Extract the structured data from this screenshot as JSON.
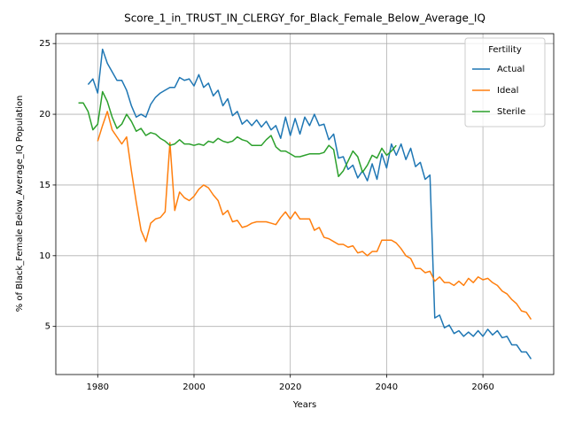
{
  "chart_data": {
    "type": "line",
    "title": "Score_1_in_TRUST_IN_CLERGY_for_Black_Female_Below_Average_IQ",
    "xlabel": "Years",
    "ylabel": "% of Black_Female Below_Average_IQ Population",
    "x": [
      1976,
      1977,
      1978,
      1979,
      1980,
      1981,
      1982,
      1983,
      1984,
      1985,
      1986,
      1987,
      1988,
      1989,
      1990,
      1991,
      1992,
      1993,
      1994,
      1995,
      1996,
      1997,
      1998,
      1999,
      2000,
      2001,
      2002,
      2003,
      2004,
      2005,
      2006,
      2007,
      2008,
      2009,
      2010,
      2011,
      2012,
      2013,
      2014,
      2015,
      2016,
      2017,
      2018,
      2019,
      2020,
      2021,
      2022,
      2023,
      2024,
      2025,
      2026,
      2027,
      2028,
      2029,
      2030,
      2031,
      2032,
      2033,
      2034,
      2035,
      2036,
      2037,
      2038,
      2039,
      2040,
      2041,
      2042,
      2043,
      2044,
      2045,
      2046,
      2047,
      2048,
      2049,
      2050,
      2051,
      2052,
      2053,
      2054,
      2055,
      2056,
      2057,
      2058,
      2059,
      2060,
      2061,
      2062,
      2063,
      2064,
      2065,
      2066,
      2067,
      2068,
      2069,
      2070
    ],
    "series": [
      {
        "name": "Actual",
        "color": "#1f77b4",
        "values": [
          null,
          null,
          22.1,
          22.5,
          21.5,
          24.6,
          23.6,
          23.0,
          22.4,
          22.4,
          21.7,
          20.6,
          19.8,
          20.0,
          19.8,
          20.7,
          21.2,
          21.5,
          21.7,
          21.9,
          21.9,
          22.6,
          22.4,
          22.5,
          22.0,
          22.8,
          21.9,
          22.2,
          21.3,
          21.7,
          20.6,
          21.1,
          19.9,
          20.2,
          19.3,
          19.6,
          19.2,
          19.6,
          19.1,
          19.5,
          18.9,
          19.2,
          18.3,
          19.8,
          18.5,
          19.7,
          18.6,
          19.8,
          19.2,
          20.0,
          19.2,
          19.3,
          18.2,
          18.6,
          16.9,
          17.0,
          16.1,
          16.4,
          15.5,
          16.0,
          15.3,
          16.5,
          15.4,
          17.2,
          16.2,
          17.9,
          17.1,
          17.9,
          16.8,
          17.6,
          16.3,
          16.6,
          15.4,
          15.7,
          5.6,
          5.8,
          4.9,
          5.1,
          4.5,
          4.7,
          4.3,
          4.6,
          4.3,
          4.7,
          4.3,
          4.8,
          4.4,
          4.7,
          4.2,
          4.3,
          3.7,
          3.7,
          3.2,
          3.2,
          2.7
        ]
      },
      {
        "name": "Ideal",
        "color": "#ff7f0e",
        "values": [
          null,
          null,
          null,
          null,
          18.1,
          19.2,
          20.2,
          18.9,
          18.4,
          17.9,
          18.4,
          16.0,
          13.8,
          11.8,
          11.0,
          12.3,
          12.6,
          12.7,
          13.1,
          18.0,
          13.2,
          14.5,
          14.1,
          13.9,
          14.2,
          14.7,
          15.0,
          14.8,
          14.3,
          13.9,
          12.9,
          13.2,
          12.4,
          12.5,
          12.0,
          12.1,
          12.3,
          12.4,
          12.4,
          12.4,
          12.3,
          12.2,
          12.7,
          13.1,
          12.6,
          13.1,
          12.6,
          12.6,
          12.6,
          11.8,
          12.0,
          11.3,
          11.2,
          11.0,
          10.8,
          10.8,
          10.6,
          10.7,
          10.2,
          10.3,
          10.0,
          10.3,
          10.3,
          11.1,
          11.1,
          11.1,
          10.9,
          10.5,
          10.0,
          9.8,
          9.1,
          9.1,
          8.8,
          8.9,
          8.2,
          8.5,
          8.1,
          8.1,
          7.9,
          8.2,
          7.9,
          8.4,
          8.1,
          8.5,
          8.3,
          8.4,
          8.1,
          7.9,
          7.5,
          7.3,
          6.9,
          6.6,
          6.1,
          6.0,
          5.5
        ]
      },
      {
        "name": "Sterile",
        "color": "#2ca02c",
        "values": [
          20.8,
          20.8,
          20.2,
          18.9,
          19.3,
          21.6,
          20.9,
          19.8,
          19.0,
          19.3,
          20.0,
          19.5,
          18.8,
          19.0,
          18.5,
          18.7,
          18.6,
          18.3,
          18.1,
          17.8,
          17.9,
          18.2,
          17.9,
          17.9,
          17.8,
          17.9,
          17.8,
          18.1,
          18.0,
          18.3,
          18.1,
          18.0,
          18.1,
          18.4,
          18.2,
          18.1,
          17.8,
          17.8,
          17.8,
          18.2,
          18.5,
          17.7,
          17.4,
          17.4,
          17.2,
          17.0,
          17.0,
          17.1,
          17.2,
          17.2,
          17.2,
          17.3,
          17.8,
          17.5,
          15.6,
          16.0,
          16.7,
          17.4,
          17.0,
          15.9,
          16.4,
          17.1,
          16.9,
          17.6,
          17.1,
          17.4,
          17.8,
          null,
          null,
          null,
          null,
          null,
          null,
          null,
          null,
          null,
          null,
          null,
          null,
          null,
          null,
          null,
          null,
          null,
          null,
          null,
          null,
          null,
          null,
          null,
          null,
          null,
          null,
          null,
          null
        ]
      }
    ],
    "xlim": [
      1971.3,
      2074.7
    ],
    "xticks": [
      1980,
      2000,
      2020,
      2040,
      2060
    ],
    "ylim": [
      1.6,
      25.7
    ],
    "yticks": [
      5,
      10,
      15,
      20,
      25
    ],
    "grid": true,
    "legend": {
      "title": "Fertility",
      "loc": "upper right"
    }
  }
}
